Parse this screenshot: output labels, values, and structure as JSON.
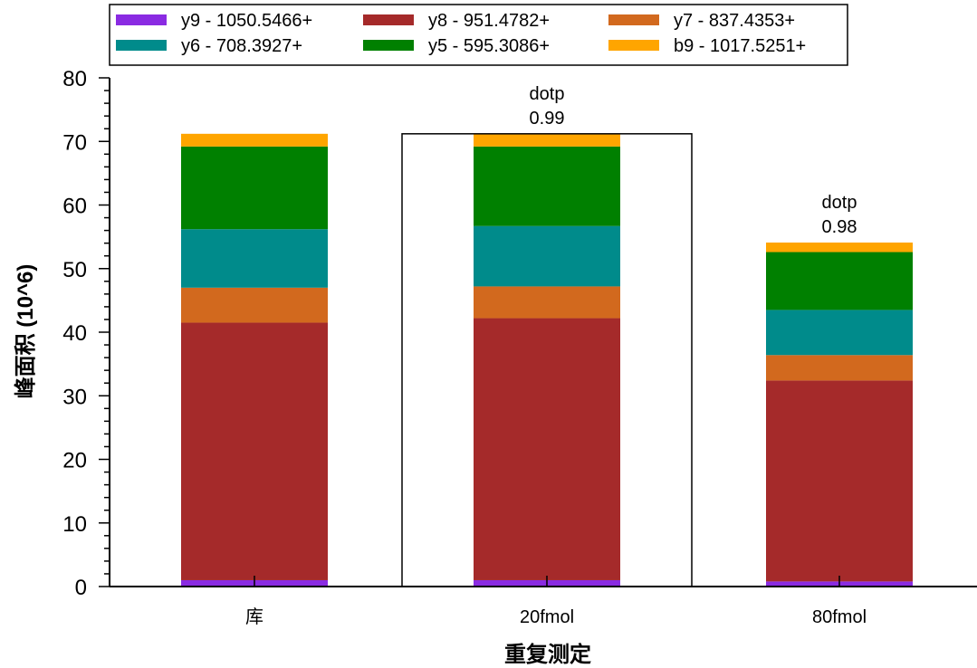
{
  "chart_data": {
    "type": "bar",
    "stacked": true,
    "categories": [
      "库",
      "20fmol",
      "80fmol"
    ],
    "series": [
      {
        "name": "y9 - 1050.5466+",
        "color": "#8a2be2",
        "values": [
          1.0,
          1.0,
          0.8
        ]
      },
      {
        "name": "y8 - 951.4782+",
        "color": "#a52a2a",
        "values": [
          40.5,
          41.2,
          31.6
        ]
      },
      {
        "name": "y7 - 837.4353+",
        "color": "#d2691e",
        "values": [
          5.5,
          5.0,
          4.0
        ]
      },
      {
        "name": "y6 - 708.3927+",
        "color": "#008b8b",
        "values": [
          9.2,
          9.5,
          7.1
        ]
      },
      {
        "name": "y5 - 595.3086+",
        "color": "#008000",
        "values": [
          13.0,
          12.5,
          9.1
        ]
      },
      {
        "name": "b9 - 1017.5251+",
        "color": "#ffa500",
        "values": [
          2.0,
          2.0,
          1.5
        ]
      }
    ],
    "ylim": [
      0,
      80
    ],
    "yticks": [
      0,
      10,
      20,
      30,
      40,
      50,
      60,
      70,
      80
    ],
    "ylabel": "峰面积 (10^6)",
    "xlabel": "重复测定",
    "selected_category": "20fmol",
    "annotations": [
      {
        "category": "20fmol",
        "label": "dotp",
        "value": "0.99"
      },
      {
        "category": "80fmol",
        "label": "dotp",
        "value": "0.98"
      }
    ],
    "legend_position": "top"
  }
}
